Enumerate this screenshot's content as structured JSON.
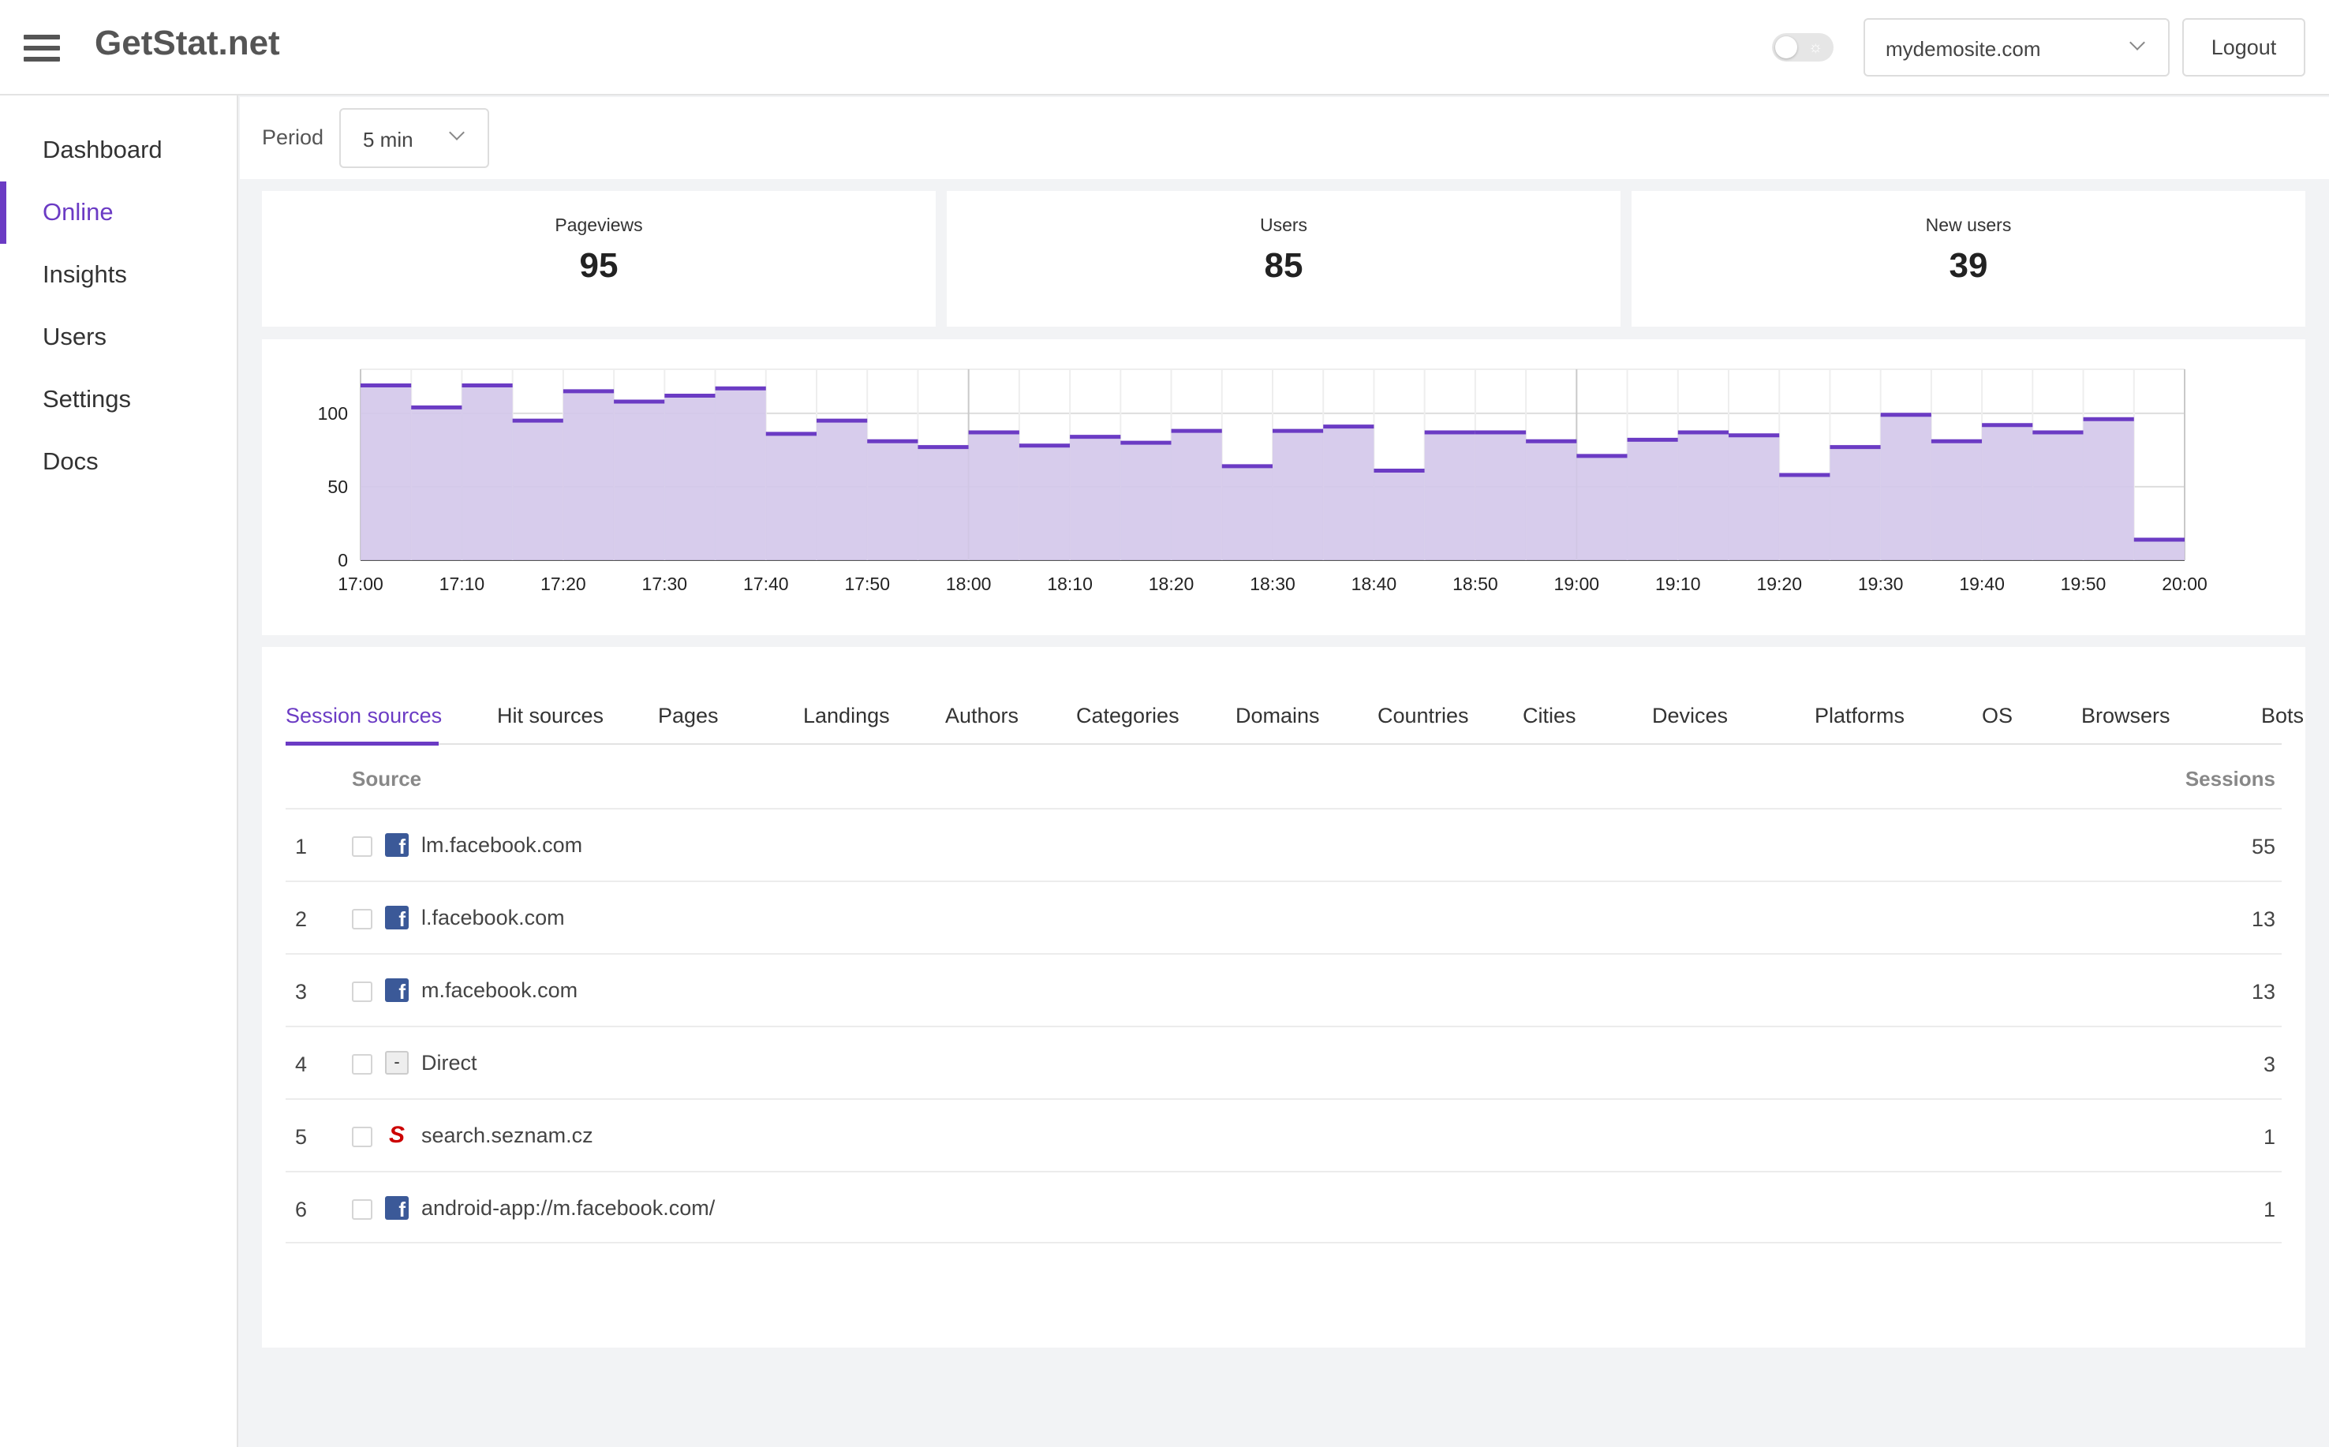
{
  "header": {
    "logo": "GetStat.net",
    "site_select": "mydemosite.com",
    "logout_label": "Logout"
  },
  "sidebar": {
    "items": [
      {
        "label": "Dashboard",
        "active": false
      },
      {
        "label": "Online",
        "active": true
      },
      {
        "label": "Insights",
        "active": false
      },
      {
        "label": "Users",
        "active": false
      },
      {
        "label": "Settings",
        "active": false
      },
      {
        "label": "Docs",
        "active": false
      }
    ]
  },
  "period": {
    "label": "Period",
    "value": "5 min"
  },
  "stats": [
    {
      "label": "Pageviews",
      "value": "95"
    },
    {
      "label": "Users",
      "value": "85"
    },
    {
      "label": "New users",
      "value": "39"
    }
  ],
  "colors": {
    "accent": "#6b3bc4",
    "chart_fill": "#d3c6ea",
    "chart_line": "#6b3bc4"
  },
  "chart_data": {
    "type": "area",
    "step": true,
    "x_ticks": [
      "17:00",
      "17:10",
      "17:20",
      "17:30",
      "17:40",
      "17:50",
      "18:00",
      "18:10",
      "18:20",
      "18:30",
      "18:40",
      "18:50",
      "19:00",
      "19:10",
      "19:20",
      "19:30",
      "19:40",
      "19:50",
      "20:00"
    ],
    "y_ticks": [
      0,
      50,
      100
    ],
    "ylim": [
      0,
      130
    ],
    "values": [
      119,
      104,
      119,
      95,
      115,
      108,
      112,
      117,
      86,
      95,
      81,
      77,
      87,
      78,
      84,
      80,
      88,
      64,
      88,
      91,
      61,
      87,
      87,
      81,
      71,
      82,
      87,
      85,
      58,
      77,
      99,
      81,
      92,
      87,
      96,
      14
    ],
    "grid": true
  },
  "tabs": [
    "Session sources",
    "Hit sources",
    "Pages",
    "Landings",
    "Authors",
    "Categories",
    "Domains",
    "Countries",
    "Cities",
    "Devices",
    "Platforms",
    "OS",
    "Browsers",
    "Bots"
  ],
  "active_tab": "Session sources",
  "table": {
    "columns": {
      "source": "Source",
      "sessions": "Sessions"
    },
    "rows": [
      {
        "num": "1",
        "icon": "facebook-icon",
        "source": "lm.facebook.com",
        "sessions": "55"
      },
      {
        "num": "2",
        "icon": "facebook-icon",
        "source": "l.facebook.com",
        "sessions": "13"
      },
      {
        "num": "3",
        "icon": "facebook-icon",
        "source": "m.facebook.com",
        "sessions": "13"
      },
      {
        "num": "4",
        "icon": "direct-icon",
        "source": "Direct",
        "sessions": "3"
      },
      {
        "num": "5",
        "icon": "seznam-icon",
        "source": "search.seznam.cz",
        "sessions": "1"
      },
      {
        "num": "6",
        "icon": "facebook-icon",
        "source": "android-app://m.facebook.com/",
        "sessions": "1"
      }
    ]
  }
}
